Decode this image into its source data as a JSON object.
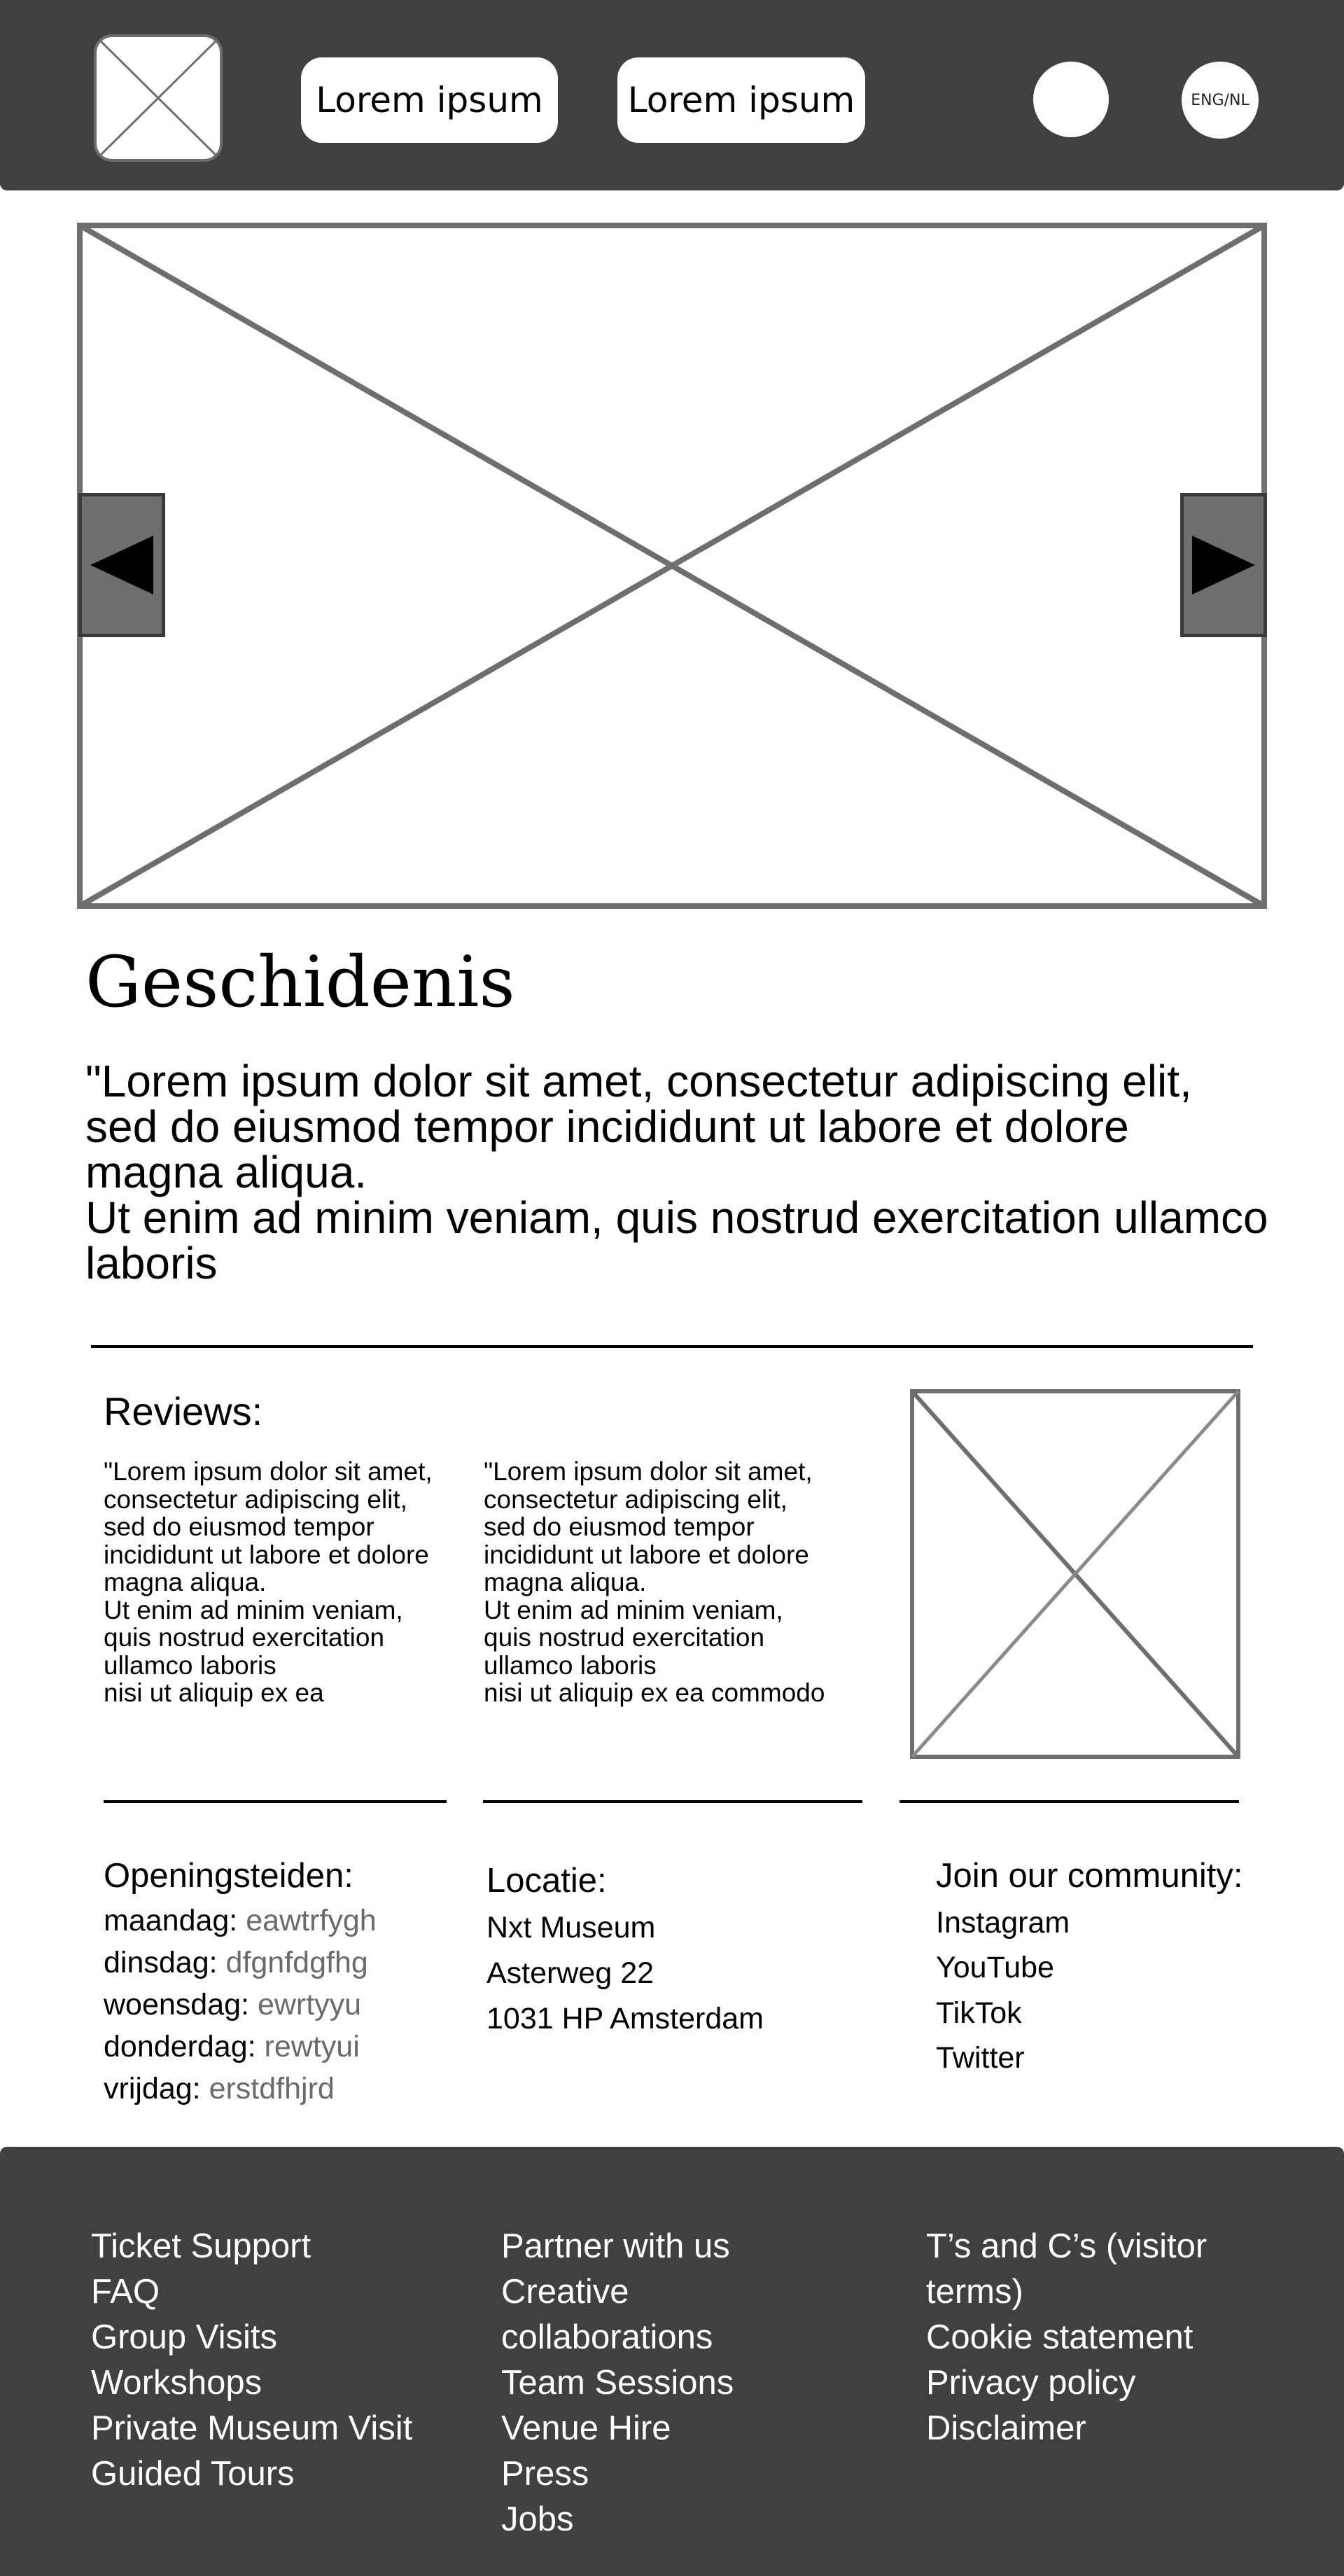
{
  "header": {
    "logo_icon": "image-placeholder-icon",
    "nav": [
      "Lorem ipsum",
      "Lorem ipsum"
    ],
    "profile_icon": "profile-circle-icon",
    "language": "ENG/NL"
  },
  "hero": {
    "image_icon": "image-placeholder-icon",
    "prev_icon": "triangle-left-icon",
    "next_icon": "triangle-right-icon"
  },
  "history": {
    "title": "Geschidenis",
    "text": "\"Lorem ipsum dolor sit amet, consectetur adipiscing elit, sed do eiusmod tempor incididunt ut labore et dolore magna aliqua.\n Ut enim ad minim veniam, quis nostrud exercitation ullamco laboris"
  },
  "reviews": {
    "title": "Reviews:",
    "items": [
      "\"Lorem ipsum dolor sit amet,\nconsectetur adipiscing elit,\n sed do eiusmod tempor\nincididunt ut labore et dolore\nmagna aliqua.\n Ut enim ad minim veniam,\nquis nostrud exercitation\nullamco laboris\nnisi ut aliquip ex ea",
      "\"Lorem ipsum dolor sit amet,\nconsectetur adipiscing elit,\n sed do eiusmod tempor\nincididunt ut labore et dolore\nmagna aliqua.\n Ut enim ad minim veniam,\nquis nostrud exercitation\nullamco laboris\nnisi ut aliquip ex ea commodo"
    ],
    "image_icon": "image-placeholder-icon"
  },
  "hours": {
    "title": "Openingsteiden:",
    "rows": [
      {
        "day": "maandag:",
        "value": "eawtrfygh"
      },
      {
        "day": "dinsdag:",
        "value": "dfgnfdgfhg"
      },
      {
        "day": "woensdag:",
        "value": "ewrtyyu"
      },
      {
        "day": "donderdag:",
        "value": "rewtyui"
      },
      {
        "day": "vrijdag:",
        "value": "erstdfhjrd"
      }
    ]
  },
  "location": {
    "title": "Locatie:",
    "lines": [
      "Nxt Museum",
      "Asterweg 22",
      "1031 HP Amsterdam"
    ]
  },
  "community": {
    "title": "Join our community:",
    "links": [
      "Instagram",
      "YouTube",
      "TikTok",
      "Twitter"
    ]
  },
  "footer": {
    "col1": [
      "Ticket Support",
      "FAQ",
      "Group Visits",
      "Workshops",
      "Private Museum Visit",
      "Guided Tours"
    ],
    "col2": [
      "Partner with us",
      "Creative",
      "collaborations",
      "Team Sessions",
      "Venue Hire",
      "Press",
      "Jobs"
    ],
    "col3": [
      "T’s and C’s (visitor",
      "terms)",
      "Cookie statement",
      "Privacy policy",
      "Disclaimer"
    ]
  },
  "colors": {
    "header_bg": "#404040",
    "footer_bg": "#404040",
    "placeholder_stroke": "#6e6e6e",
    "muted_text": "#6a6a6a"
  }
}
